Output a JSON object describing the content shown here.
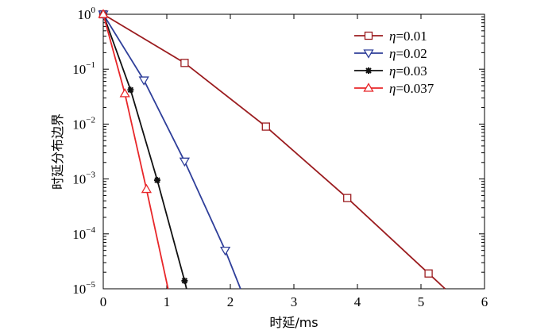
{
  "chart_data": {
    "type": "line",
    "xlabel": "时延/ms",
    "ylabel": "时延分布边界",
    "x_scale": "linear",
    "y_scale": "log",
    "xlim": [
      0,
      6
    ],
    "ylim": [
      1e-05,
      1
    ],
    "x_ticks": [
      "0",
      "1",
      "2",
      "3",
      "4",
      "5",
      "6"
    ],
    "y_ticks": [
      {
        "base": "10",
        "exp": "0",
        "value": 1
      },
      {
        "base": "10",
        "exp": "−1",
        "value": 0.1
      },
      {
        "base": "10",
        "exp": "−2",
        "value": 0.01
      },
      {
        "base": "10",
        "exp": "−3",
        "value": 0.001
      },
      {
        "base": "10",
        "exp": "−4",
        "value": 0.0001
      },
      {
        "base": "10",
        "exp": "−5",
        "value": 1e-05
      }
    ],
    "legend_position": "top-right",
    "series": [
      {
        "name": "η=0.01",
        "greek": "η",
        "value_text": "=0.01",
        "color": "#9b1c1f",
        "marker": "square",
        "x": [
          0,
          1.28,
          2.56,
          3.84,
          5.12,
          5.38
        ],
        "y": [
          1,
          0.13,
          0.009,
          0.00045,
          1.9e-05,
          1e-05
        ]
      },
      {
        "name": "η=0.02",
        "greek": "η",
        "value_text": "=0.02",
        "color": "#2f3f9a",
        "marker": "triangle-down",
        "x": [
          0,
          0.64,
          1.28,
          1.92,
          2.16
        ],
        "y": [
          1,
          0.063,
          0.0021,
          5e-05,
          1e-05
        ]
      },
      {
        "name": "η=0.03",
        "greek": "η",
        "value_text": "=0.03",
        "color": "#111111",
        "marker": "star",
        "x": [
          0,
          0.43,
          0.85,
          1.28,
          1.31
        ],
        "y": [
          1,
          0.042,
          0.00095,
          1.4e-05,
          1e-05
        ]
      },
      {
        "name": "η=0.037",
        "greek": "η",
        "value_text": "=0.037",
        "color": "#e8272a",
        "marker": "triangle-up",
        "x": [
          0,
          0.34,
          0.68,
          1.02
        ],
        "y": [
          1,
          0.036,
          0.00065,
          1e-05
        ]
      }
    ]
  }
}
